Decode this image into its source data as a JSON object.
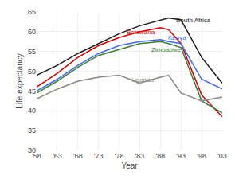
{
  "chart_data": {
    "type": "line",
    "xlabel": "Year",
    "ylabel": "Life expectancy",
    "x": [
      1958,
      1963,
      1968,
      1973,
      1978,
      1983,
      1988,
      1990,
      1993,
      1998,
      2003
    ],
    "series": [
      {
        "name": "Botswana",
        "color": "#cc0000",
        "values": [
          46.0,
          49.5,
          53.5,
          56.5,
          58.5,
          60.0,
          61.0,
          60.5,
          57.0,
          44.0,
          38.5
        ]
      },
      {
        "name": "Zimbabwe",
        "color": "#3a7a3a",
        "values": [
          44.5,
          47.5,
          51.0,
          54.0,
          55.5,
          57.0,
          57.5,
          57.0,
          56.0,
          42.5,
          39.5
        ]
      },
      {
        "name": "Kenya",
        "color": "#4169e1",
        "values": [
          45.0,
          48.0,
          51.5,
          54.5,
          56.5,
          57.5,
          58.0,
          57.5,
          57.0,
          48.0,
          45.5
        ]
      },
      {
        "name": "South Africa",
        "color": "#1a1a1a",
        "values": [
          49.0,
          51.5,
          54.5,
          57.0,
          59.5,
          61.5,
          63.0,
          63.5,
          63.0,
          53.5,
          47.0
        ]
      },
      {
        "name": "Uganda",
        "color": "#888880",
        "values": [
          43.0,
          45.5,
          47.5,
          48.5,
          49.0,
          47.0,
          48.5,
          49.0,
          44.5,
          42.5,
          43.5
        ]
      }
    ],
    "annotations": [
      {
        "text": "Botswana",
        "x": 1979.5,
        "y": 59.8,
        "color": "#cc0000"
      },
      {
        "text": "Zimbabwe",
        "x": 1985.5,
        "y": 55.5,
        "color": "#3a7a3a"
      },
      {
        "text": "Kenya",
        "x": 1989.5,
        "y": 58.5,
        "color": "#4169e1"
      },
      {
        "text": "South Africa",
        "x": 1991.5,
        "y": 62.8,
        "color": "#1a1a1a"
      },
      {
        "text": "Uganda",
        "x": 1980.5,
        "y": 47.8,
        "color": "#888880"
      }
    ],
    "xlim": [
      1958,
      2003
    ],
    "ylim": [
      30,
      65
    ],
    "xticks": [
      {
        "value": 1958,
        "label": "'58"
      },
      {
        "value": 1963,
        "label": "'63"
      },
      {
        "value": 1968,
        "label": "'68"
      },
      {
        "value": 1973,
        "label": "'73"
      },
      {
        "value": 1978,
        "label": "'78"
      },
      {
        "value": 1983,
        "label": "'83"
      },
      {
        "value": 1988,
        "label": "'88"
      },
      {
        "value": 1993,
        "label": "'93"
      },
      {
        "value": 1998,
        "label": "'98"
      },
      {
        "value": 2003,
        "label": "'03"
      }
    ],
    "yticks": [
      30,
      35,
      40,
      45,
      50,
      55,
      60,
      65
    ],
    "grid": true
  }
}
